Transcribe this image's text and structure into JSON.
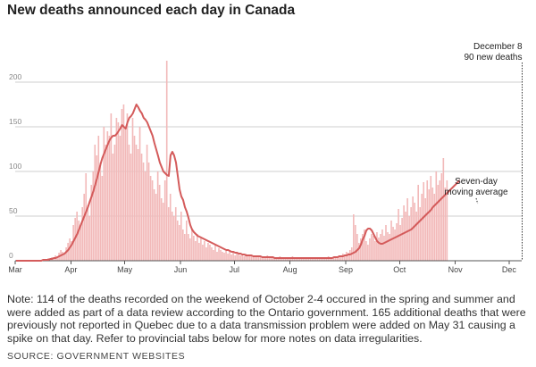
{
  "title": "New deaths announced each day in Canada",
  "note": "Note: 114 of the deaths recorded on the weekend of October 2-4 occured in the spring and summer and were added as part of a data review according to the Ontario government. 165 additional deaths that were previously not reported in Quebec due to a data transmission problem were added on May 31 causing a spike on that day. Refer to provincial tabs below for more notes on data irregularities.",
  "source": "SOURCE: GOVERNMENT WEBSITES",
  "colors": {
    "bars": "#f2b9b9",
    "line": "#d45b5b",
    "grid": "#cfcfcf",
    "text": "#222222"
  },
  "chart_data": {
    "type": "bar",
    "title": "New deaths announced each day in Canada",
    "x_start": "2020-03-01",
    "x_end": "2020-12-08",
    "ylim": [
      0,
      220
    ],
    "yticks": [
      "0",
      "50",
      "100",
      "150",
      "200"
    ],
    "xticks": [
      "Mar",
      "Apr",
      "May",
      "Jun",
      "Jul",
      "Aug",
      "Sep",
      "Oct",
      "Nov",
      "Dec"
    ],
    "grid": true,
    "series": [
      {
        "type": "bar",
        "values": [
          0,
          0,
          0,
          0,
          0,
          0,
          0,
          0,
          1,
          0,
          0,
          0,
          0,
          1,
          0,
          1,
          2,
          1,
          3,
          2,
          4,
          3,
          6,
          5,
          9,
          12,
          10,
          8,
          15,
          20,
          25,
          22,
          40,
          48,
          55,
          45,
          40,
          60,
          75,
          98,
          62,
          50,
          85,
          100,
          130,
          118,
          140,
          110,
          95,
          150,
          130,
          145,
          140,
          165,
          120,
          130,
          160,
          155,
          140,
          170,
          175,
          150,
          165,
          130,
          120,
          160,
          140,
          130,
          125,
          150,
          120,
          110,
          100,
          130,
          110,
          95,
          90,
          80,
          75,
          100,
          85,
          70,
          65,
          90,
          224,
          60,
          75,
          55,
          50,
          60,
          45,
          40,
          55,
          35,
          30,
          45,
          30,
          25,
          35,
          28,
          22,
          30,
          20,
          25,
          18,
          22,
          15,
          20,
          18,
          15,
          12,
          18,
          10,
          14,
          12,
          10,
          9,
          11,
          8,
          12,
          7,
          10,
          6,
          9,
          8,
          6,
          7,
          5,
          8,
          6,
          5,
          6,
          4,
          5,
          6,
          4,
          5,
          3,
          5,
          4,
          6,
          3,
          4,
          5,
          3,
          4,
          3,
          5,
          2,
          4,
          3,
          4,
          2,
          3,
          5,
          3,
          2,
          4,
          3,
          2,
          3,
          4,
          2,
          3,
          2,
          4,
          3,
          2,
          3,
          2,
          3,
          4,
          2,
          3,
          5,
          2,
          4,
          3,
          5,
          4,
          6,
          5,
          8,
          7,
          10,
          9,
          12,
          15,
          52,
          40,
          30,
          20,
          25,
          30,
          35,
          22,
          18,
          25,
          30,
          28,
          22,
          32,
          26,
          30,
          35,
          28,
          40,
          32,
          30,
          45,
          38,
          35,
          42,
          58,
          40,
          48,
          62,
          55,
          70,
          50,
          60,
          72,
          65,
          55,
          85,
          60,
          75,
          88,
          70,
          90,
          80,
          95,
          82,
          75,
          100,
          85,
          90,
          98,
          115,
          82,
          90
        ]
      },
      {
        "type": "line",
        "values": [
          0,
          0,
          0,
          0,
          0,
          0,
          0,
          0,
          0,
          0,
          0,
          0,
          0,
          0,
          0,
          1,
          1,
          1,
          1,
          2,
          2,
          3,
          3,
          4,
          5,
          6,
          7,
          8,
          10,
          12,
          15,
          18,
          22,
          26,
          30,
          35,
          40,
          45,
          50,
          55,
          60,
          66,
          72,
          78,
          85,
          92,
          100,
          108,
          115,
          120,
          125,
          130,
          135,
          138,
          140,
          140,
          142,
          145,
          148,
          152,
          150,
          148,
          155,
          160,
          162,
          165,
          170,
          175,
          172,
          168,
          165,
          160,
          158,
          155,
          150,
          145,
          140,
          132,
          125,
          118,
          110,
          105,
          100,
          98,
          96,
          95,
          118,
          122,
          118,
          110,
          95,
          80,
          72,
          68,
          60,
          55,
          48,
          40,
          35,
          32,
          30,
          28,
          27,
          26,
          25,
          24,
          23,
          22,
          21,
          20,
          19,
          18,
          17,
          16,
          15,
          14,
          13,
          12,
          12,
          11,
          10,
          10,
          9,
          9,
          8,
          8,
          7,
          7,
          6,
          6,
          6,
          6,
          5,
          5,
          5,
          5,
          5,
          4,
          4,
          4,
          4,
          4,
          4,
          4,
          3,
          3,
          3,
          3,
          3,
          3,
          3,
          3,
          3,
          3,
          3,
          3,
          3,
          3,
          3,
          3,
          3,
          3,
          3,
          3,
          3,
          3,
          3,
          3,
          3,
          3,
          3,
          3,
          3,
          3,
          3,
          3,
          3,
          4,
          4,
          4,
          5,
          5,
          5,
          6,
          6,
          7,
          7,
          8,
          9,
          10,
          12,
          14,
          18,
          24,
          28,
          34,
          36,
          36,
          34,
          30,
          26,
          22,
          20,
          19,
          19,
          20,
          21,
          22,
          23,
          24,
          25,
          26,
          27,
          28,
          29,
          30,
          31,
          32,
          33,
          34,
          35,
          37,
          39,
          41,
          43,
          45,
          47,
          49,
          51,
          53,
          55,
          57,
          60,
          62,
          64,
          66,
          68,
          70,
          72,
          74,
          76,
          78,
          80,
          82,
          84,
          86,
          88,
          90
        ]
      }
    ],
    "annotations": [
      {
        "text_lines": [
          "December 8",
          "90 new deaths"
        ],
        "x": "2020-12-08",
        "y": 90
      },
      {
        "text_lines": [
          "Seven-day",
          "moving average"
        ],
        "x": "2020-11-12",
        "y": 60
      }
    ]
  }
}
